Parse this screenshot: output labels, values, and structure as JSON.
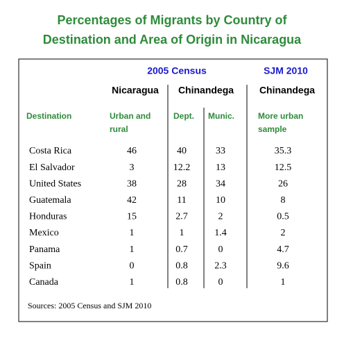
{
  "title": [
    "Percentages of Migrants by Country of",
    "Destination and Area of Origin in Nicaragua"
  ],
  "table": {
    "group_headers": [
      "2005 Census",
      "SJM 2010"
    ],
    "place_headers": [
      "Nicaragua",
      "Chinandega",
      "Chinandega"
    ],
    "column_headers": [
      "Destination",
      "Urban and\nrural",
      "Dept.",
      "Munic.",
      "More urban\nsample"
    ],
    "rows": [
      [
        "Costa Rica",
        46,
        40,
        33,
        35.3
      ],
      [
        "El Salvador",
        3,
        12.2,
        13,
        12.5
      ],
      [
        "United States",
        38,
        28,
        34,
        26
      ],
      [
        "Guatemala",
        42,
        11,
        10,
        8
      ],
      [
        "Honduras",
        15,
        2.7,
        2,
        0.5
      ],
      [
        "Mexico",
        1,
        1,
        1.4,
        2
      ],
      [
        "Panama",
        1,
        0.7,
        0,
        4.7
      ],
      [
        "Spain",
        0,
        0.8,
        2.3,
        9.6
      ],
      [
        "Canada",
        1,
        0.8,
        0,
        1
      ]
    ]
  },
  "source": "Sources: 2005  Census and SJM 2010"
}
